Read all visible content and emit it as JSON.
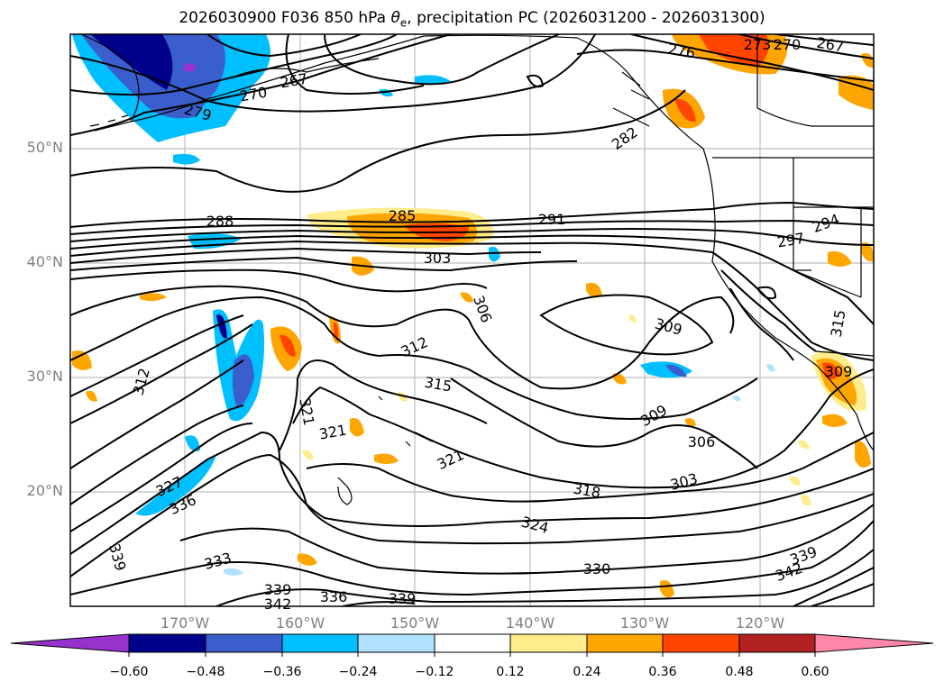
{
  "title": {
    "prefix": "2026030900 F036 850 hPa ",
    "theta_symbol": "θ",
    "theta_sub": "e",
    "suffix": ", precipitation PC (2026031200 - 2026031300)"
  },
  "lat_labels": [
    "50°N",
    "40°N",
    "30°N",
    "20°N"
  ],
  "lon_labels": [
    "170°W",
    "160°W",
    "150°W",
    "140°W",
    "130°W",
    "120°W"
  ],
  "contour_labels": [
    "267",
    "270",
    "279",
    "276",
    "273",
    "270",
    "267",
    "282",
    "288",
    "285",
    "291",
    "294",
    "297",
    "303",
    "306",
    "309",
    "312",
    "315",
    "312",
    "309",
    "306",
    "303",
    "315",
    "318",
    "321",
    "321",
    "321",
    "324",
    "327",
    "336",
    "330",
    "333",
    "339",
    "339",
    "342",
    "336",
    "339",
    "342",
    "339",
    "309"
  ],
  "colorbar": {
    "colors": [
      "#9932CC",
      "#00008B",
      "#3A5FCD",
      "#00BFFF",
      "#B0E2FF",
      "#FFFFFF",
      "#FFEC8B",
      "#FFA500",
      "#FF4500",
      "#B22222",
      "#FF88AA"
    ],
    "ticks": [
      "−0.60",
      "−0.48",
      "−0.36",
      "−0.24",
      "−0.12",
      "0.12",
      "0.24",
      "0.36",
      "0.48",
      "0.60"
    ]
  }
}
